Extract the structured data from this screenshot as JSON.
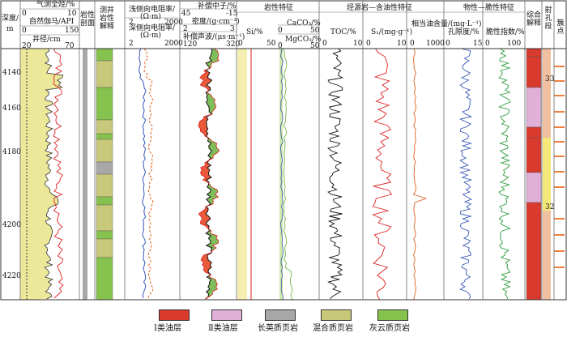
{
  "header": {
    "depth_title": "深度/",
    "depth_unit": "m",
    "track1_lines": [
      "气测全烃/%",
      "自然伽马/API",
      "井径/cm"
    ],
    "track1_scales": [
      [
        "0",
        "10"
      ],
      [
        "0",
        "150"
      ],
      [
        "20",
        "70"
      ]
    ],
    "lithology_column": "岩性剖面",
    "logging_interp": "测井岩性解释",
    "resistivity": [
      "浅侧向电阻率/",
      "(Ω·m)",
      "深侧向电阻率/",
      "(Ω·m)"
    ],
    "res_scales": [
      [
        "2",
        "2000"
      ],
      [
        "2",
        "2000"
      ]
    ],
    "neutron": {
      "label": "补偿中子/%",
      "min": "45",
      "max": "-15"
    },
    "density": {
      "label": "密度/(g·cm⁻³)",
      "min": "2",
      "max": "3"
    },
    "sonic": {
      "label": "补偿声波/(μs·m⁻¹)",
      "min": "120",
      "max": "320"
    },
    "lith_section": "岩性特征",
    "si": {
      "label": "Si/%",
      "min": "0",
      "max": "50"
    },
    "caco3": {
      "label": "CaCO₃/%",
      "min": "0",
      "max": "50"
    },
    "mgco3": {
      "label": "MgCO₃/%",
      "min": "0",
      "max": "50"
    },
    "source_section": "烃源岩—含油性特征",
    "toc": {
      "label": "TOC/%",
      "min": "0",
      "max": "10"
    },
    "s1": {
      "label": "S₁/(mg·g⁻¹)",
      "min": "0",
      "max": "10"
    },
    "oil": {
      "label": "相当油含量/(mg·L⁻¹)",
      "min": "0",
      "max": "1000"
    },
    "phys_section": "物性—脆性特征",
    "porosity": {
      "label": "孔隙度/%",
      "min": "0",
      "max": "15"
    },
    "brittle": {
      "label": "脆性指数/%",
      "min": "0",
      "max": "100"
    },
    "comp_interp": "综合解释",
    "perforation": "射孔段",
    "cluster": "簇点"
  },
  "depth_ticks": [
    "4140",
    "4160",
    "4180",
    "4200",
    "4220"
  ],
  "layer_labels": [
    "33",
    "32"
  ],
  "legend": [
    {
      "name": "type1",
      "label": "Ⅰ类油层",
      "color": "#d93a2e"
    },
    {
      "name": "type2",
      "label": "Ⅱ类油层",
      "color": "#e0b0d8"
    },
    {
      "name": "felsic",
      "label": "长英质页岩",
      "color": "#a8a8a8",
      "glyph": "M"
    },
    {
      "name": "mixed",
      "label": "混合质页岩",
      "color": "#c8c87a",
      "glyph": "⁘"
    },
    {
      "name": "dolo",
      "label": "灰云质页岩",
      "color": "#86c24e",
      "glyph": "/ /"
    }
  ],
  "colors": {
    "type1": "#d93a2e",
    "type2": "#e0b0d8",
    "sand": "#ece89a",
    "green": "#7fbe5a",
    "orange": "#f0a868",
    "blue": "#3858b8",
    "perf_yellow": "#f4e87a"
  }
}
